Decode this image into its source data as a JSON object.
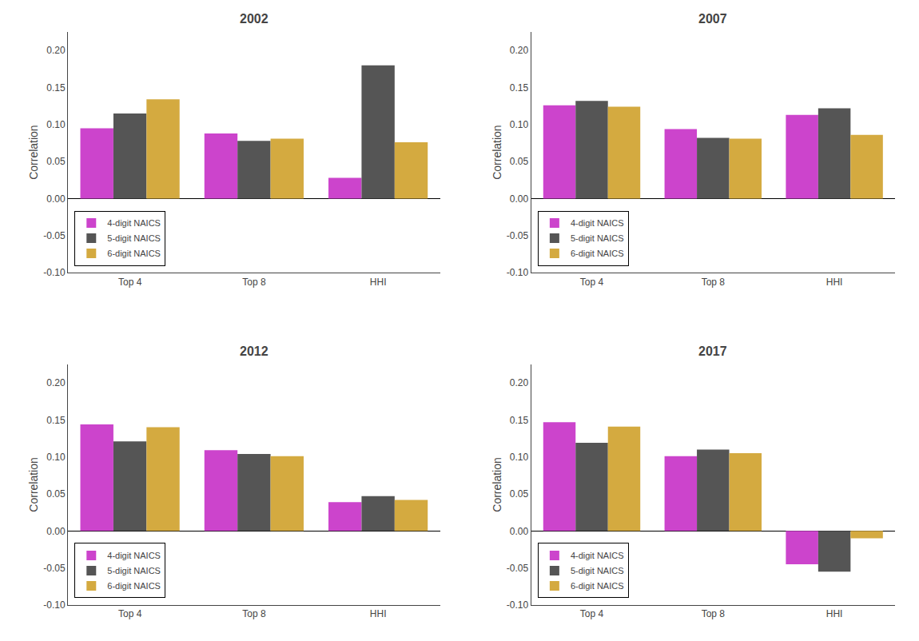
{
  "chart_data": [
    {
      "type": "bar",
      "title": "2002",
      "categories": [
        "Top 4",
        "Top 8",
        "HHI"
      ],
      "series": [
        {
          "name": "4-digit NAICS",
          "color": "#CC44CC",
          "values": [
            0.095,
            0.088,
            0.028
          ]
        },
        {
          "name": "5-digit NAICS",
          "color": "#555555",
          "values": [
            0.115,
            0.078,
            0.18
          ]
        },
        {
          "name": "6-digit NAICS",
          "color": "#D4AA40",
          "values": [
            0.134,
            0.081,
            0.076
          ]
        }
      ],
      "ylabel": "Correlation",
      "ylim": [
        -0.1,
        0.225
      ],
      "yticks": [
        {
          "value": -0.1,
          "label": "-0.10"
        },
        -0.05,
        {
          "value": 0,
          "label": "0.00"
        },
        0.05,
        {
          "value": 0.1,
          "label": "0.10"
        },
        0.15,
        {
          "value": 0.2,
          "label": "0.20"
        }
      ],
      "grid": false,
      "legend": "lower left"
    },
    {
      "type": "bar",
      "title": "2007",
      "categories": [
        "Top 4",
        "Top 8",
        "HHI"
      ],
      "series": [
        {
          "name": "4-digit NAICS",
          "color": "#CC44CC",
          "values": [
            0.126,
            0.094,
            0.113
          ]
        },
        {
          "name": "5-digit NAICS",
          "color": "#555555",
          "values": [
            0.132,
            0.082,
            0.122
          ]
        },
        {
          "name": "6-digit NAICS",
          "color": "#D4AA40",
          "values": [
            0.124,
            0.081,
            0.086
          ]
        }
      ],
      "ylabel": "Correlation",
      "ylim": [
        -0.1,
        0.225
      ],
      "yticks": [
        {
          "value": -0.1,
          "label": "-0.10"
        },
        -0.05,
        {
          "value": 0,
          "label": "0.00"
        },
        0.05,
        {
          "value": 0.1,
          "label": "0.10"
        },
        0.15,
        {
          "value": 0.2,
          "label": "0.20"
        }
      ],
      "grid": false,
      "legend": "lower left"
    },
    {
      "type": "bar",
      "title": "2012",
      "categories": [
        "Top 4",
        "Top 8",
        "HHI"
      ],
      "series": [
        {
          "name": "4-digit NAICS",
          "color": "#CC44CC",
          "values": [
            0.144,
            0.109,
            0.039
          ]
        },
        {
          "name": "5-digit NAICS",
          "color": "#555555",
          "values": [
            0.121,
            0.104,
            0.047
          ]
        },
        {
          "name": "6-digit NAICS",
          "color": "#D4AA40",
          "values": [
            0.14,
            0.101,
            0.042
          ]
        }
      ],
      "ylabel": "Correlation",
      "ylim": [
        -0.1,
        0.225
      ],
      "yticks": [
        {
          "value": -0.1,
          "label": "-0.10"
        },
        -0.05,
        {
          "value": 0,
          "label": "0.00"
        },
        0.05,
        {
          "value": 0.1,
          "label": "0.10"
        },
        0.15,
        {
          "value": 0.2,
          "label": "0.20"
        }
      ],
      "grid": false,
      "legend": "lower left"
    },
    {
      "type": "bar",
      "title": "2017",
      "categories": [
        "Top 4",
        "Top 8",
        "HHI"
      ],
      "series": [
        {
          "name": "4-digit NAICS",
          "color": "#CC44CC",
          "values": [
            0.147,
            0.101,
            -0.045
          ]
        },
        {
          "name": "5-digit NAICS",
          "color": "#555555",
          "values": [
            0.119,
            0.11,
            -0.055
          ]
        },
        {
          "name": "6-digit NAICS",
          "color": "#D4AA40",
          "values": [
            0.141,
            0.105,
            -0.01
          ]
        }
      ],
      "ylabel": "Correlation",
      "ylim": [
        -0.1,
        0.225
      ],
      "yticks": [
        {
          "value": -0.1,
          "label": "-0.10"
        },
        -0.05,
        {
          "value": 0,
          "label": "0.00"
        },
        0.05,
        {
          "value": 0.1,
          "label": "0.10"
        },
        0.15,
        {
          "value": 0.2,
          "label": "0.20"
        }
      ],
      "grid": false,
      "legend": "lower left"
    }
  ]
}
